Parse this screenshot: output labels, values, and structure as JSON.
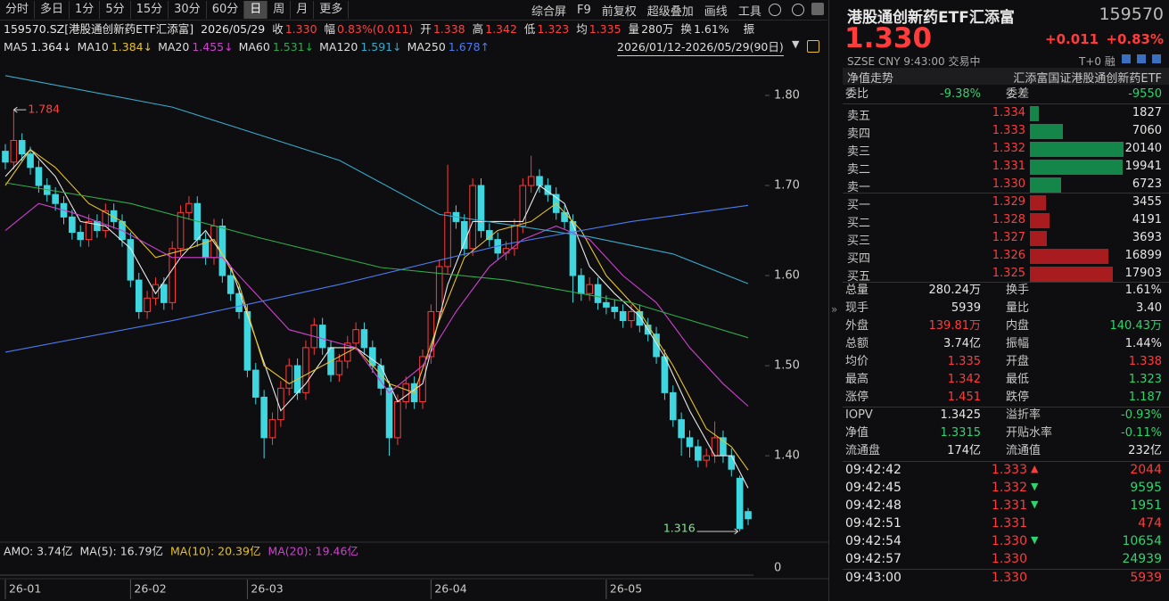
{
  "toolbar": {
    "periods": [
      "分时",
      "多日",
      "1分",
      "5分",
      "15分",
      "30分",
      "60分",
      "日",
      "周",
      "月",
      "更多"
    ],
    "selected": "日",
    "tools": [
      "综合屏",
      "F9",
      "前复权",
      "超级叠加",
      "画线",
      "工具"
    ]
  },
  "info_bar": {
    "code": "159570.SZ[港股通创新药ETF汇添富]",
    "date": "2026/05/29",
    "items": [
      {
        "label": "收",
        "value": "1.330",
        "color": "#ff4040"
      },
      {
        "label": "幅",
        "value": "0.83%(0.011)",
        "color": "#ff4040"
      },
      {
        "label": "开",
        "value": "1.338",
        "color": "#ff4040"
      },
      {
        "label": "高",
        "value": "1.342",
        "color": "#ff4040"
      },
      {
        "label": "低",
        "value": "1.323",
        "color": "#ff4040"
      },
      {
        "label": "均",
        "value": "1.335",
        "color": "#ff4040"
      },
      {
        "label": "量",
        "value": "280万",
        "color": "#dddddd"
      },
      {
        "label": "换",
        "value": "1.61%",
        "color": "#dddddd"
      }
    ],
    "trailing": "振",
    "range": "2026/01/12-2026/05/29(90日)"
  },
  "chart_data": {
    "type": "candlestick",
    "up_color": "#ff3b3b",
    "down_color": "#3fd6df",
    "xlim": [
      -0.5,
      89.5
    ],
    "ylim": [
      1.31,
      1.85
    ],
    "yticks": [
      {
        "value": 1.4,
        "label": "1.40"
      },
      {
        "value": 1.5,
        "label": "1.50"
      },
      {
        "value": 1.6,
        "label": "1.60"
      },
      {
        "value": 1.7,
        "label": "1.70"
      },
      {
        "value": 1.8,
        "label": "1.80"
      }
    ],
    "xticks": [
      {
        "value": 0,
        "label": "26-01"
      },
      {
        "value": 15,
        "label": "26-02"
      },
      {
        "value": 29,
        "label": "26-03"
      },
      {
        "value": 51,
        "label": "26-04"
      },
      {
        "value": 72,
        "label": "26-05"
      }
    ],
    "open": [
      1.738,
      1.726,
      1.75,
      1.735,
      1.72,
      1.7,
      1.69,
      1.68,
      1.665,
      1.648,
      1.64,
      1.66,
      1.65,
      1.672,
      1.66,
      1.64,
      1.595,
      1.56,
      1.575,
      1.59,
      1.57,
      1.63,
      1.67,
      1.68,
      1.64,
      1.62,
      1.655,
      1.6,
      1.58,
      1.56,
      1.495,
      1.465,
      1.42,
      1.44,
      1.475,
      1.5,
      1.47,
      1.52,
      1.545,
      1.52,
      1.49,
      1.505,
      1.525,
      1.54,
      1.52,
      1.5,
      1.475,
      1.42,
      1.46,
      1.48,
      1.46,
      1.51,
      1.56,
      1.61,
      1.67,
      1.66,
      1.63,
      1.7,
      1.65,
      1.64,
      1.625,
      1.63,
      1.655,
      1.7,
      1.71,
      1.7,
      1.69,
      1.67,
      1.66,
      1.6,
      1.58,
      1.59,
      1.57,
      1.565,
      1.56,
      1.55,
      1.56,
      1.545,
      1.535,
      1.51,
      1.47,
      1.44,
      1.42,
      1.41,
      1.395,
      1.4,
      1.42,
      1.4,
      1.375,
      1.338
    ],
    "high": [
      1.746,
      1.784,
      1.758,
      1.743,
      1.728,
      1.708,
      1.698,
      1.688,
      1.673,
      1.656,
      1.668,
      1.668,
      1.68,
      1.68,
      1.668,
      1.648,
      1.603,
      1.583,
      1.598,
      1.598,
      1.638,
      1.678,
      1.688,
      1.688,
      1.648,
      1.663,
      1.663,
      1.608,
      1.588,
      1.568,
      1.503,
      1.473,
      1.448,
      1.483,
      1.508,
      1.508,
      1.528,
      1.553,
      1.553,
      1.528,
      1.513,
      1.533,
      1.548,
      1.548,
      1.528,
      1.508,
      1.483,
      1.468,
      1.488,
      1.488,
      1.518,
      1.568,
      1.618,
      1.723,
      1.678,
      1.668,
      1.708,
      1.708,
      1.658,
      1.648,
      1.638,
      1.663,
      1.708,
      1.733,
      1.718,
      1.708,
      1.698,
      1.678,
      1.668,
      1.608,
      1.598,
      1.598,
      1.578,
      1.573,
      1.568,
      1.568,
      1.568,
      1.553,
      1.543,
      1.518,
      1.478,
      1.448,
      1.428,
      1.418,
      1.408,
      1.438,
      1.428,
      1.408,
      1.378,
      1.342
    ],
    "low": [
      1.718,
      1.718,
      1.727,
      1.712,
      1.692,
      1.682,
      1.672,
      1.657,
      1.64,
      1.632,
      1.632,
      1.642,
      1.642,
      1.652,
      1.632,
      1.587,
      1.552,
      1.552,
      1.567,
      1.562,
      1.562,
      1.622,
      1.662,
      1.632,
      1.612,
      1.612,
      1.592,
      1.572,
      1.552,
      1.487,
      1.457,
      1.397,
      1.412,
      1.432,
      1.467,
      1.462,
      1.462,
      1.512,
      1.512,
      1.482,
      1.482,
      1.497,
      1.517,
      1.512,
      1.492,
      1.467,
      1.4,
      1.412,
      1.452,
      1.452,
      1.452,
      1.502,
      1.552,
      1.602,
      1.652,
      1.622,
      1.622,
      1.642,
      1.632,
      1.617,
      1.617,
      1.622,
      1.647,
      1.692,
      1.692,
      1.682,
      1.662,
      1.652,
      1.57,
      1.572,
      1.572,
      1.562,
      1.557,
      1.552,
      1.542,
      1.542,
      1.537,
      1.527,
      1.502,
      1.462,
      1.432,
      1.4,
      1.398,
      1.387,
      1.387,
      1.392,
      1.392,
      1.377,
      1.316,
      1.323
    ],
    "close": [
      1.726,
      1.75,
      1.735,
      1.72,
      1.7,
      1.69,
      1.68,
      1.665,
      1.648,
      1.64,
      1.66,
      1.65,
      1.672,
      1.66,
      1.64,
      1.595,
      1.56,
      1.575,
      1.59,
      1.57,
      1.63,
      1.67,
      1.68,
      1.64,
      1.62,
      1.655,
      1.6,
      1.58,
      1.56,
      1.495,
      1.465,
      1.42,
      1.44,
      1.475,
      1.5,
      1.47,
      1.52,
      1.545,
      1.52,
      1.49,
      1.505,
      1.525,
      1.54,
      1.52,
      1.5,
      1.475,
      1.42,
      1.46,
      1.48,
      1.46,
      1.51,
      1.56,
      1.61,
      1.67,
      1.66,
      1.63,
      1.7,
      1.65,
      1.64,
      1.625,
      1.63,
      1.655,
      1.7,
      1.71,
      1.7,
      1.69,
      1.67,
      1.66,
      1.6,
      1.58,
      1.59,
      1.57,
      1.565,
      1.56,
      1.55,
      1.56,
      1.545,
      1.535,
      1.51,
      1.47,
      1.44,
      1.42,
      1.41,
      1.395,
      1.4,
      1.42,
      1.4,
      1.385,
      1.319,
      1.33
    ],
    "series": [
      {
        "name": "MA5",
        "legend_value": "1.364↓",
        "color": "#e8e8e8",
        "x": [
          0,
          3,
          6,
          9,
          12,
          15,
          18,
          21,
          24,
          27,
          30,
          33,
          36,
          39,
          42,
          45,
          47,
          50,
          53,
          56,
          59,
          62,
          64,
          67,
          70,
          73,
          76,
          79,
          82,
          85,
          87,
          89
        ],
        "values": [
          1.71,
          1.74,
          1.71,
          1.66,
          1.655,
          1.63,
          1.58,
          1.62,
          1.65,
          1.61,
          1.53,
          1.45,
          1.48,
          1.52,
          1.52,
          1.5,
          1.46,
          1.48,
          1.59,
          1.66,
          1.66,
          1.66,
          1.7,
          1.68,
          1.61,
          1.58,
          1.555,
          1.51,
          1.45,
          1.4,
          1.4,
          1.364
        ]
      },
      {
        "name": "MA10",
        "legend_value": "1.384↓",
        "color": "#e6c229",
        "x": [
          0,
          3,
          6,
          10,
          14,
          18,
          22,
          25,
          28,
          31,
          34,
          38,
          42,
          46,
          49,
          52,
          55,
          59,
          63,
          66,
          69,
          72,
          76,
          80,
          84,
          87,
          89
        ],
        "values": [
          1.7,
          1.74,
          1.72,
          1.68,
          1.66,
          1.62,
          1.63,
          1.64,
          1.59,
          1.5,
          1.48,
          1.5,
          1.52,
          1.48,
          1.47,
          1.55,
          1.62,
          1.65,
          1.66,
          1.68,
          1.65,
          1.6,
          1.56,
          1.5,
          1.43,
          1.41,
          1.384
        ]
      },
      {
        "name": "MA20",
        "legend_value": "1.455↓",
        "color": "#d040d0",
        "x": [
          0,
          4,
          8,
          14,
          20,
          26,
          30,
          34,
          38,
          42,
          46,
          50,
          54,
          58,
          62,
          66,
          70,
          74,
          78,
          82,
          86,
          89
        ],
        "values": [
          1.65,
          1.68,
          1.67,
          1.65,
          1.62,
          1.62,
          1.58,
          1.54,
          1.53,
          1.52,
          1.47,
          1.5,
          1.56,
          1.61,
          1.64,
          1.655,
          1.64,
          1.6,
          1.57,
          1.52,
          1.48,
          1.455
        ]
      },
      {
        "name": "MA60",
        "legend_value": "1.531↓",
        "color": "#2eaa4a",
        "x": [
          0,
          15,
          30,
          45,
          60,
          75,
          89
        ],
        "values": [
          1.703,
          1.68,
          1.643,
          1.609,
          1.595,
          1.57,
          1.531
        ]
      },
      {
        "name": "MA120",
        "legend_value": "1.591↓",
        "color": "#38a9c9",
        "x": [
          0,
          20,
          40,
          52,
          70,
          80,
          89
        ],
        "values": [
          1.822,
          1.787,
          1.728,
          1.668,
          1.643,
          1.624,
          1.591
        ]
      },
      {
        "name": "MA250",
        "legend_value": "1.678↑",
        "color": "#4a7bf0",
        "x": [
          0,
          20,
          40,
          60,
          75,
          89
        ],
        "values": [
          1.515,
          1.55,
          1.59,
          1.635,
          1.66,
          1.678
        ]
      }
    ],
    "annotations": {
      "high": 1.784,
      "low": 1.316
    },
    "volume_legend": [
      {
        "text": "AMO: 3.74亿",
        "color": "#dddddd"
      },
      {
        "text": "MA(5): 16.79亿",
        "color": "#dddddd"
      },
      {
        "text": "MA(10): 20.39亿",
        "color": "#e6c229"
      },
      {
        "text": "MA(20): 19.46亿",
        "color": "#d040d0"
      }
    ],
    "volume_yticks": [
      0
    ]
  },
  "panel": {
    "name": "港股通创新药ETF汇添富",
    "code": "159570",
    "price": "1.330",
    "change": "+0.011",
    "change_pct": "+0.83%",
    "exchange": "SZSE",
    "currency": "CNY",
    "time": "9:43:00",
    "status": "交易中",
    "t0": "T+0 融",
    "nav_title": "净值走势",
    "fund_name": "汇添富国证港股通创新药ETF",
    "commission": [
      "委比",
      "-9.38%",
      "委差",
      "-9550"
    ],
    "asks": [
      {
        "label": "卖五",
        "price": "1.334",
        "volume": 1827
      },
      {
        "label": "卖四",
        "price": "1.333",
        "volume": 7060
      },
      {
        "label": "卖三",
        "price": "1.332",
        "volume": 20140
      },
      {
        "label": "卖二",
        "price": "1.331",
        "volume": 19941
      },
      {
        "label": "卖一",
        "price": "1.330",
        "volume": 6723
      }
    ],
    "bids": [
      {
        "label": "买一",
        "price": "1.329",
        "volume": 3455
      },
      {
        "label": "买二",
        "price": "1.328",
        "volume": 4191
      },
      {
        "label": "买三",
        "price": "1.327",
        "volume": 3693
      },
      {
        "label": "买四",
        "price": "1.326",
        "volume": 16899
      },
      {
        "label": "买五",
        "price": "1.325",
        "volume": 17903
      }
    ],
    "stats": [
      [
        "总量",
        "280.24万",
        "换手",
        "1.61%"
      ],
      [
        "现手",
        "5939",
        "量比",
        "3.40"
      ],
      [
        "外盘",
        "139.81万",
        "内盘",
        "140.43万"
      ],
      [
        "总额",
        "3.74亿",
        "振幅",
        "1.44%"
      ],
      [
        "均价",
        "1.335",
        "开盘",
        "1.338"
      ],
      [
        "最高",
        "1.342",
        "最低",
        "1.323"
      ],
      [
        "涨停",
        "1.451",
        "跌停",
        "1.187"
      ]
    ],
    "fund_stats": [
      [
        "IOPV",
        "1.3425",
        "溢折率",
        "-0.93%"
      ],
      [
        "净值",
        "1.3315",
        "开贴水率",
        "-0.11%"
      ],
      [
        "流通盘",
        "174亿",
        "流通值",
        "232亿"
      ]
    ],
    "trades": [
      {
        "time": "09:42:42",
        "price": "1.333",
        "volume": "2044",
        "side": "buy",
        "arrow": "up"
      },
      {
        "time": "09:42:45",
        "price": "1.332",
        "volume": "9595",
        "side": "sell",
        "arrow": "down"
      },
      {
        "time": "09:42:48",
        "price": "1.331",
        "volume": "1951",
        "side": "sell",
        "arrow": "down"
      },
      {
        "time": "09:42:51",
        "price": "1.331",
        "volume": "474",
        "side": "buy"
      },
      {
        "time": "09:42:54",
        "price": "1.330",
        "volume": "10654",
        "side": "sell",
        "arrow": "down"
      },
      {
        "time": "09:42:57",
        "price": "1.330",
        "volume": "24939",
        "side": "sell"
      },
      {
        "time": "09:43:00",
        "price": "1.330",
        "volume": "5939",
        "side": "buy"
      }
    ]
  }
}
